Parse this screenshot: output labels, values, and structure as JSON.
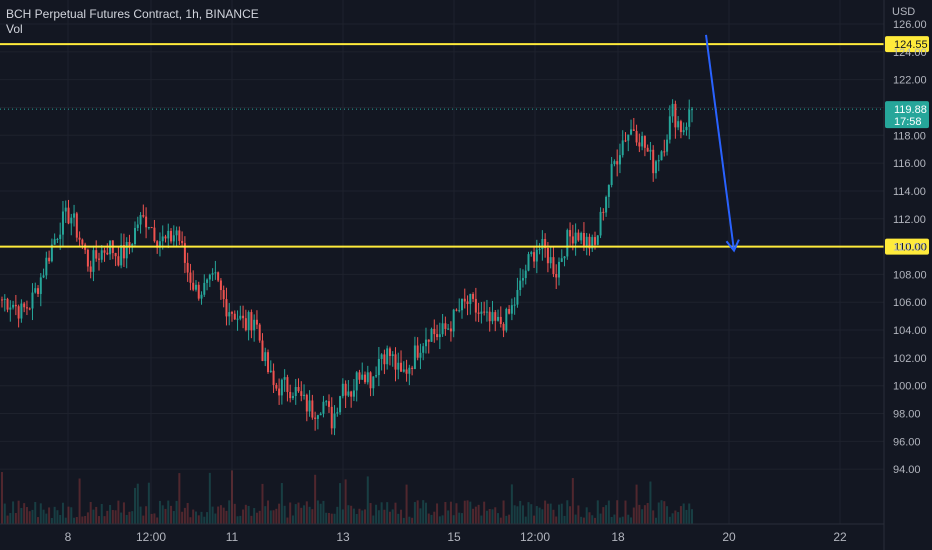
{
  "header": {
    "title": "BCH Perpetual Futures Contract, 1h, BINANCE",
    "volume_label": "Vol",
    "currency": "USD"
  },
  "colors": {
    "background": "#131722",
    "up": "#26a69a",
    "down": "#ef5350",
    "level_line": "#ffeb3b",
    "arrow": "#2962ff",
    "last_price_badge": "#26a69a",
    "grid": "#1e222d"
  },
  "chart_data": {
    "type": "candlestick",
    "ylim": [
      92.0,
      126.0
    ],
    "y_ticks": [
      "94.00",
      "96.00",
      "98.00",
      "100.00",
      "102.00",
      "104.00",
      "106.00",
      "108.00",
      "110.00",
      "112.00",
      "114.00",
      "116.00",
      "118.00",
      "120.00",
      "122.00",
      "124.00",
      "126.00"
    ],
    "x_ticks": [
      "8",
      "12:00",
      "11",
      "13",
      "15",
      "12:00",
      "18",
      "20",
      "22"
    ],
    "grid": true,
    "price_path": [
      106.2,
      106.0,
      105.3,
      106.0,
      107.8,
      109.8,
      111.6,
      112.4,
      110.6,
      108.6,
      109.5,
      110.1,
      109.3,
      109.8,
      111.8,
      112.0,
      110.6,
      110.3,
      111.2,
      108.4,
      106.8,
      107.0,
      107.6,
      105.8,
      105.2,
      104.3,
      105.0,
      101.8,
      99.8,
      100.0,
      99.8,
      98.8,
      98.2,
      98.9,
      97.4,
      100.2,
      99.6,
      101.4,
      100.4,
      102.4,
      102.2,
      100.6,
      101.6,
      103.0,
      104.0,
      103.6,
      104.3,
      105.4,
      106.0,
      105.2,
      104.6,
      104.4,
      104.8,
      106.4,
      108.6,
      110.0,
      109.6,
      108.2,
      110.3,
      111.2,
      110.4,
      109.9,
      113.4,
      116.0,
      117.9,
      118.6,
      117.4,
      115.9,
      117.2,
      119.7,
      118.4,
      119.88
    ],
    "horizontal_levels": [
      {
        "value": 124.55,
        "label": "124.55"
      },
      {
        "value": 110.0,
        "label": "110.00"
      }
    ],
    "last_price": {
      "value": 119.88,
      "label": "119.88",
      "countdown": "17:58"
    },
    "annotations": [
      {
        "type": "arrow",
        "from": {
          "x": "18",
          "y": 125.0
        },
        "to": {
          "x": "20",
          "y": 110.0
        }
      }
    ]
  }
}
